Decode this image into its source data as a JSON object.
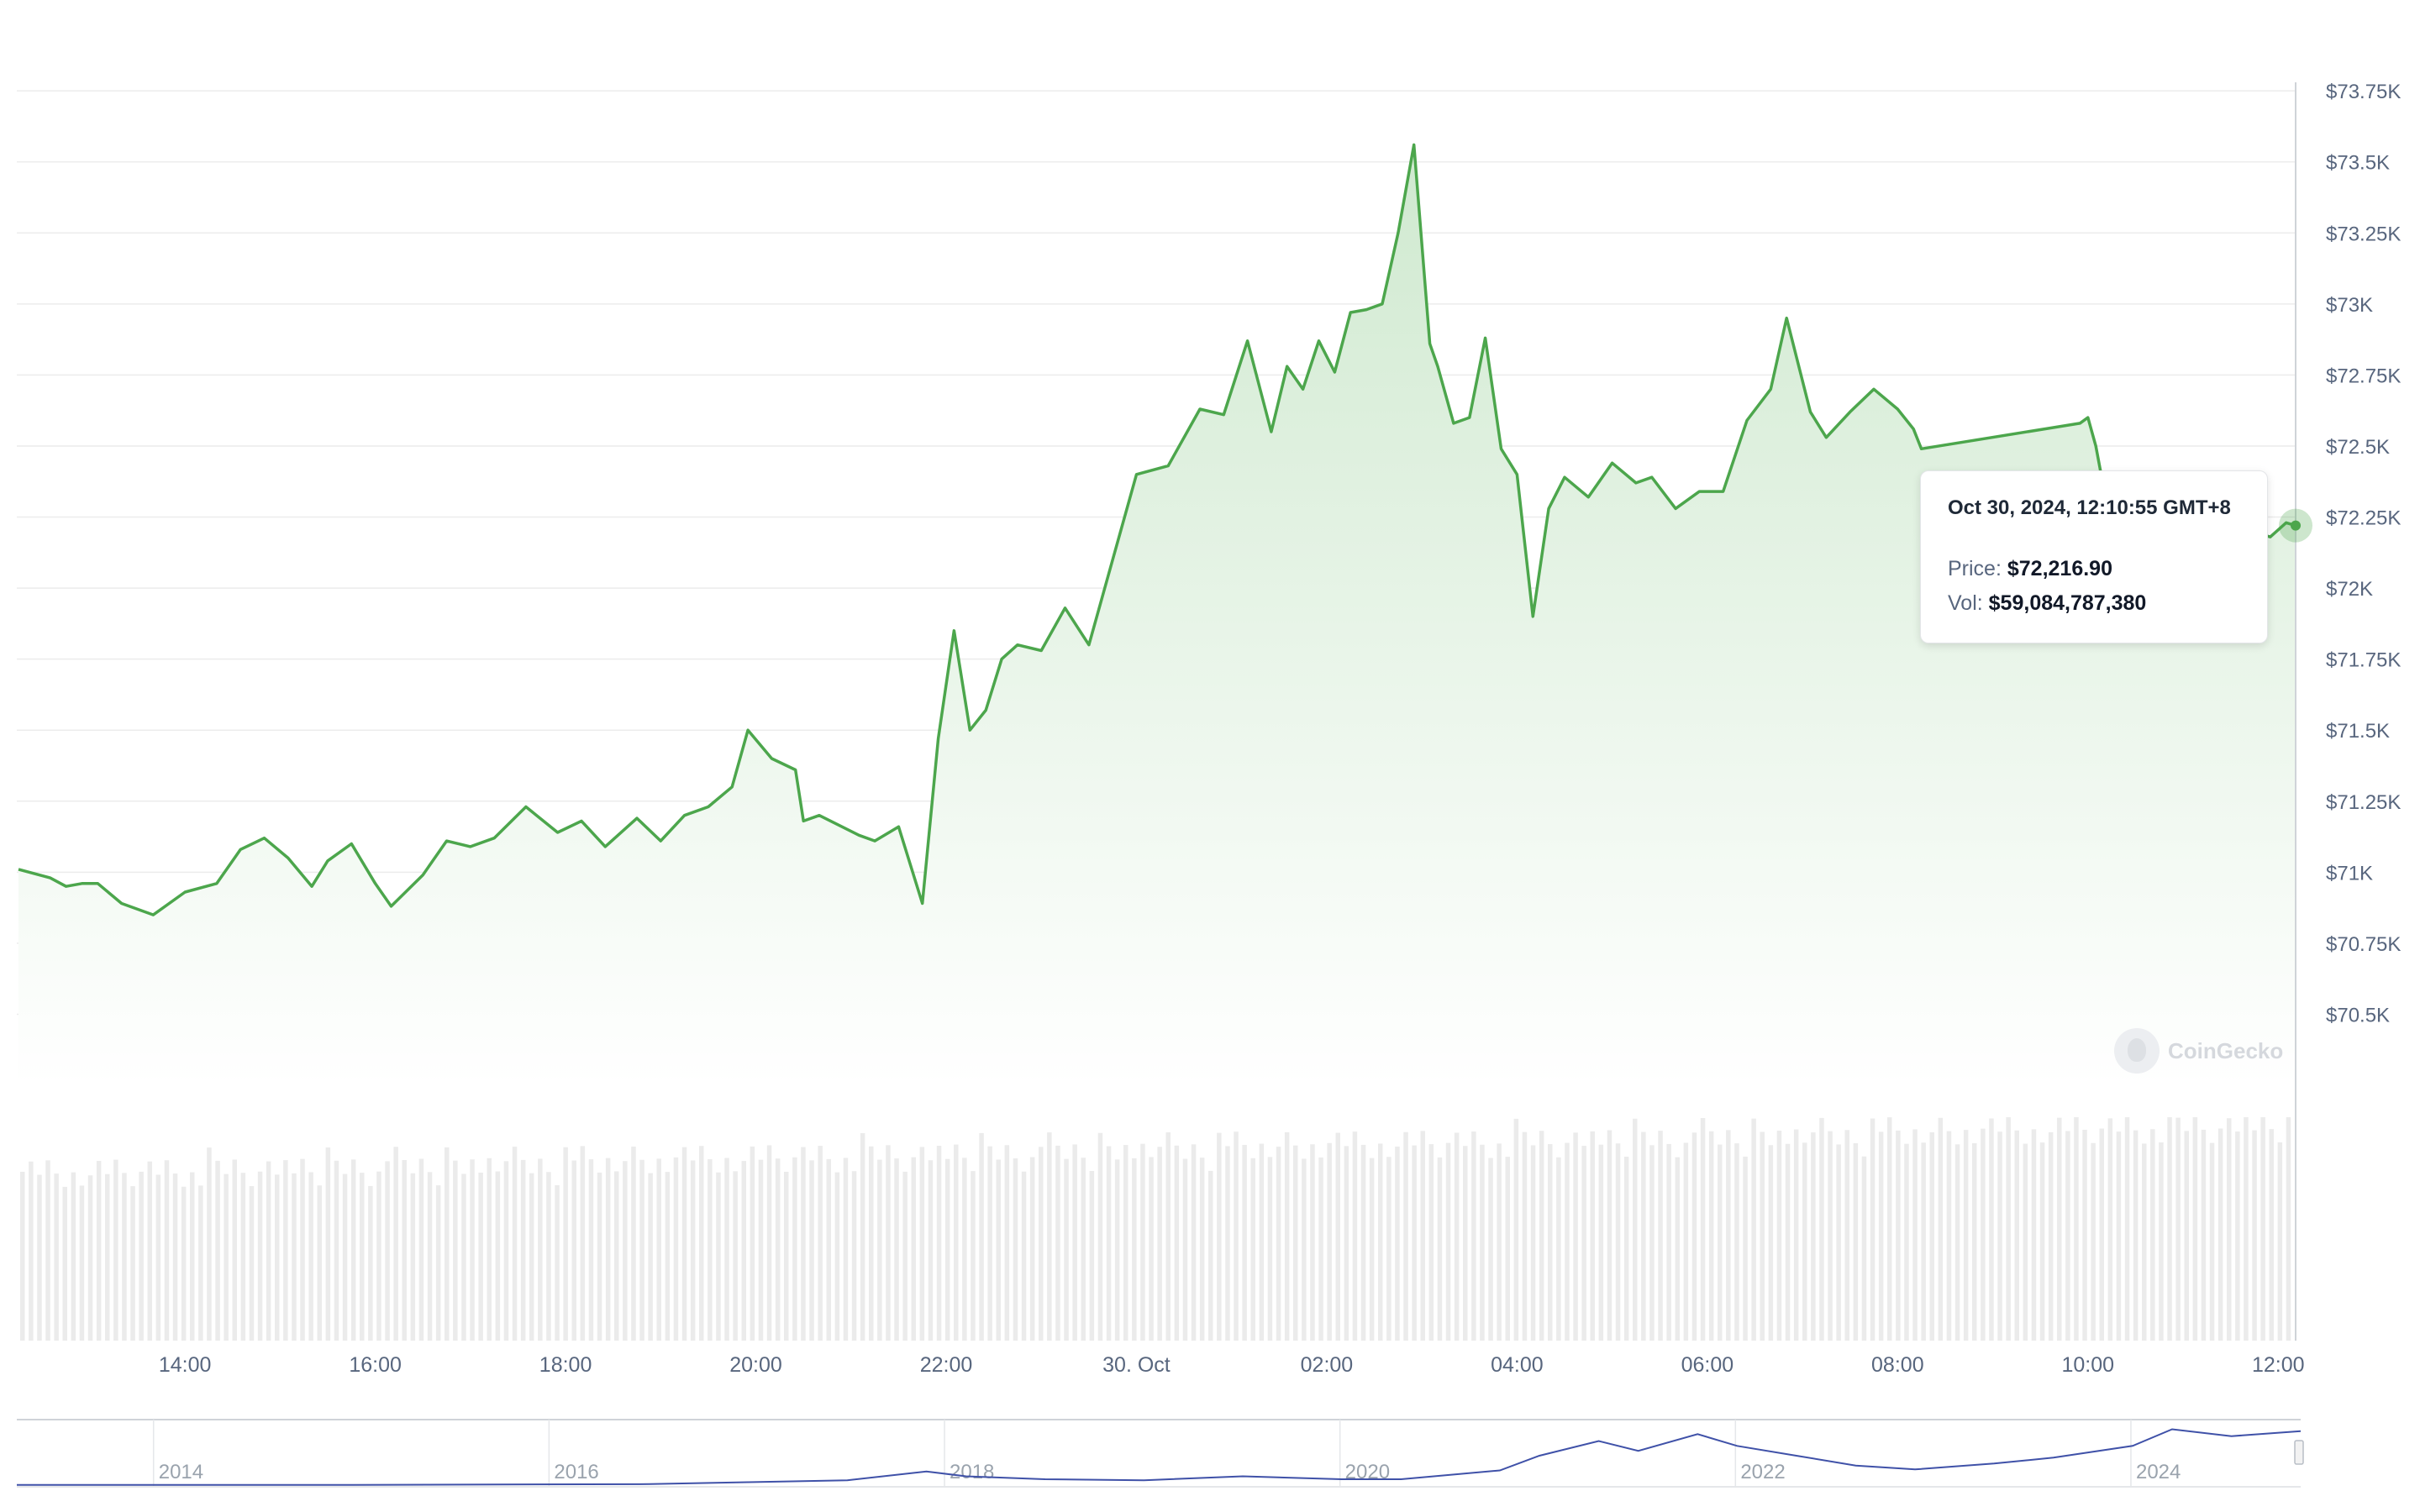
{
  "chart_data": {
    "type": "area",
    "title": "",
    "xlabel": "",
    "ylabel": "",
    "y_unit": "USD",
    "ylim": [
      70250,
      73780
    ],
    "y_ticks": [
      "$70.5K",
      "$70.75K",
      "$71K",
      "$71.25K",
      "$71.5K",
      "$71.75K",
      "$72K",
      "$72.25K",
      "$72.5K",
      "$72.75K",
      "$73K",
      "$73.25K",
      "$73.5K",
      "$73.75K"
    ],
    "y_tick_values": [
      70500,
      70750,
      71000,
      71250,
      71500,
      71750,
      72000,
      72250,
      72500,
      72750,
      73000,
      73250,
      73500,
      73750
    ],
    "xlim": [
      "2024-10-29 12:15",
      "2024-10-30 12:11"
    ],
    "x_ticks": [
      "14:00",
      "16:00",
      "18:00",
      "20:00",
      "22:00",
      "30. Oct",
      "02:00",
      "04:00",
      "06:00",
      "08:00",
      "10:00",
      "12:00"
    ],
    "x_tick_values": [
      "2024-10-29 14:00",
      "2024-10-29 16:00",
      "2024-10-29 18:00",
      "2024-10-29 20:00",
      "2024-10-29 22:00",
      "2024-10-30 00:00",
      "2024-10-30 02:00",
      "2024-10-30 04:00",
      "2024-10-30 06:00",
      "2024-10-30 08:00",
      "2024-10-30 10:00",
      "2024-10-30 12:00"
    ],
    "grid": true,
    "legend": "none",
    "colors": {
      "line": "#4ca64c",
      "fill_top": "#cfe9cf",
      "fill_bottom": "#ffffff",
      "volume": "#ebebeb",
      "navigator_line": "#3f51a8",
      "grid": "#ececec",
      "axis_text": "#58667e"
    },
    "series": [
      {
        "name": "Price",
        "x": [
          "2024-10-29 12:15",
          "2024-10-29 12:35",
          "2024-10-29 12:45",
          "2024-10-29 12:55",
          "2024-10-29 13:05",
          "2024-10-29 13:20",
          "2024-10-29 13:40",
          "2024-10-29 14:00",
          "2024-10-29 14:20",
          "2024-10-29 14:35",
          "2024-10-29 14:50",
          "2024-10-29 15:05",
          "2024-10-29 15:20",
          "2024-10-29 15:30",
          "2024-10-29 15:45",
          "2024-10-29 16:00",
          "2024-10-29 16:10",
          "2024-10-29 16:30",
          "2024-10-29 16:45",
          "2024-10-29 17:00",
          "2024-10-29 17:15",
          "2024-10-29 17:35",
          "2024-10-29 17:55",
          "2024-10-29 18:10",
          "2024-10-29 18:25",
          "2024-10-29 18:45",
          "2024-10-29 19:00",
          "2024-10-29 19:15",
          "2024-10-29 19:30",
          "2024-10-29 19:45",
          "2024-10-29 19:55",
          "2024-10-29 20:10",
          "2024-10-29 20:25",
          "2024-10-29 20:30",
          "2024-10-29 20:40",
          "2024-10-29 21:05",
          "2024-10-29 21:15",
          "2024-10-29 21:30",
          "2024-10-29 21:45",
          "2024-10-29 21:55",
          "2024-10-29 22:05",
          "2024-10-29 22:15",
          "2024-10-29 22:25",
          "2024-10-29 22:35",
          "2024-10-29 22:45",
          "2024-10-29 23:00",
          "2024-10-29 23:15",
          "2024-10-29 23:30",
          "2024-10-29 23:45",
          "2024-10-30 00:00",
          "2024-10-30 00:20",
          "2024-10-30 00:40",
          "2024-10-30 00:55",
          "2024-10-30 01:10",
          "2024-10-30 01:25",
          "2024-10-30 01:35",
          "2024-10-30 01:45",
          "2024-10-30 01:55",
          "2024-10-30 02:05",
          "2024-10-30 02:15",
          "2024-10-30 02:25",
          "2024-10-30 02:35",
          "2024-10-30 02:45",
          "2024-10-30 02:55",
          "2024-10-30 03:05",
          "2024-10-30 03:10",
          "2024-10-30 03:20",
          "2024-10-30 03:30",
          "2024-10-30 03:40",
          "2024-10-30 03:50",
          "2024-10-30 04:00",
          "2024-10-30 04:10",
          "2024-10-30 04:20",
          "2024-10-30 04:30",
          "2024-10-30 04:45",
          "2024-10-30 05:00",
          "2024-10-30 05:15",
          "2024-10-30 05:25",
          "2024-10-30 05:40",
          "2024-10-30 05:55",
          "2024-10-30 06:10",
          "2024-10-30 06:25",
          "2024-10-30 06:40",
          "2024-10-30 06:50",
          "2024-10-30 07:05",
          "2024-10-30 07:15",
          "2024-10-30 07:30",
          "2024-10-30 07:45",
          "2024-10-30 08:00",
          "2024-10-30 08:10",
          "2024-10-30 08:15",
          "2024-10-30 09:55",
          "2024-10-30 10:00",
          "2024-10-30 10:05",
          "2024-10-30 10:10",
          "2024-10-30 11:55",
          "2024-10-30 12:05",
          "2024-10-30 12:11"
        ],
        "values": [
          71010,
          70980,
          70950,
          70960,
          70960,
          70890,
          70850,
          70930,
          70960,
          71080,
          71120,
          71050,
          70950,
          71040,
          71100,
          70960,
          70880,
          70990,
          71110,
          71090,
          71120,
          71230,
          71140,
          71180,
          71090,
          71190,
          71110,
          71200,
          71230,
          71300,
          71500,
          71400,
          71360,
          71180,
          71200,
          71130,
          71110,
          71160,
          70890,
          71470,
          71850,
          71500,
          71570,
          71750,
          71800,
          71780,
          71930,
          71800,
          72100,
          72400,
          72430,
          72630,
          72610,
          72870,
          72550,
          72780,
          72700,
          72870,
          72760,
          72970,
          72980,
          73000,
          73250,
          73560,
          72860,
          72780,
          72580,
          72600,
          72880,
          72490,
          72400,
          71900,
          72280,
          72390,
          72320,
          72440,
          72370,
          72390,
          72280,
          72340,
          72340,
          72590,
          72700,
          72950,
          72620,
          72530,
          72620,
          72700,
          72630,
          72560,
          72490,
          72580,
          72600,
          72500,
          72350,
          72180,
          72230,
          72220
        ]
      }
    ],
    "tooltip": {
      "date": "Oct 30, 2024, 12:10:55 GMT+8",
      "price_label": "Price:",
      "price_value": "$72,216.90",
      "vol_label": "Vol:",
      "vol_value": "$59,084,787,380"
    },
    "navigator": {
      "x_ticks": [
        "2014",
        "2016",
        "2018",
        "2020",
        "2022",
        "2024"
      ],
      "x_tick_values": [
        2014,
        2016,
        2018,
        2020,
        2022,
        2024
      ],
      "xlim": [
        2013.3,
        2024.85
      ],
      "series_years": [
        2013.3,
        2015.0,
        2016.5,
        2017.0,
        2017.5,
        2017.9,
        2018.1,
        2018.5,
        2019.0,
        2019.5,
        2020.0,
        2020.3,
        2020.8,
        2021.0,
        2021.3,
        2021.5,
        2021.8,
        2022.0,
        2022.3,
        2022.6,
        2022.9,
        2023.3,
        2023.6,
        2024.0,
        2024.2,
        2024.5,
        2024.85
      ],
      "series_values": [
        0.2,
        0.3,
        1,
        3,
        5,
        14,
        9,
        6,
        5,
        9,
        6,
        6,
        15,
        30,
        45,
        35,
        52,
        40,
        30,
        20,
        16,
        22,
        28,
        40,
        57,
        50,
        55
      ]
    },
    "watermark": "CoinGecko"
  }
}
